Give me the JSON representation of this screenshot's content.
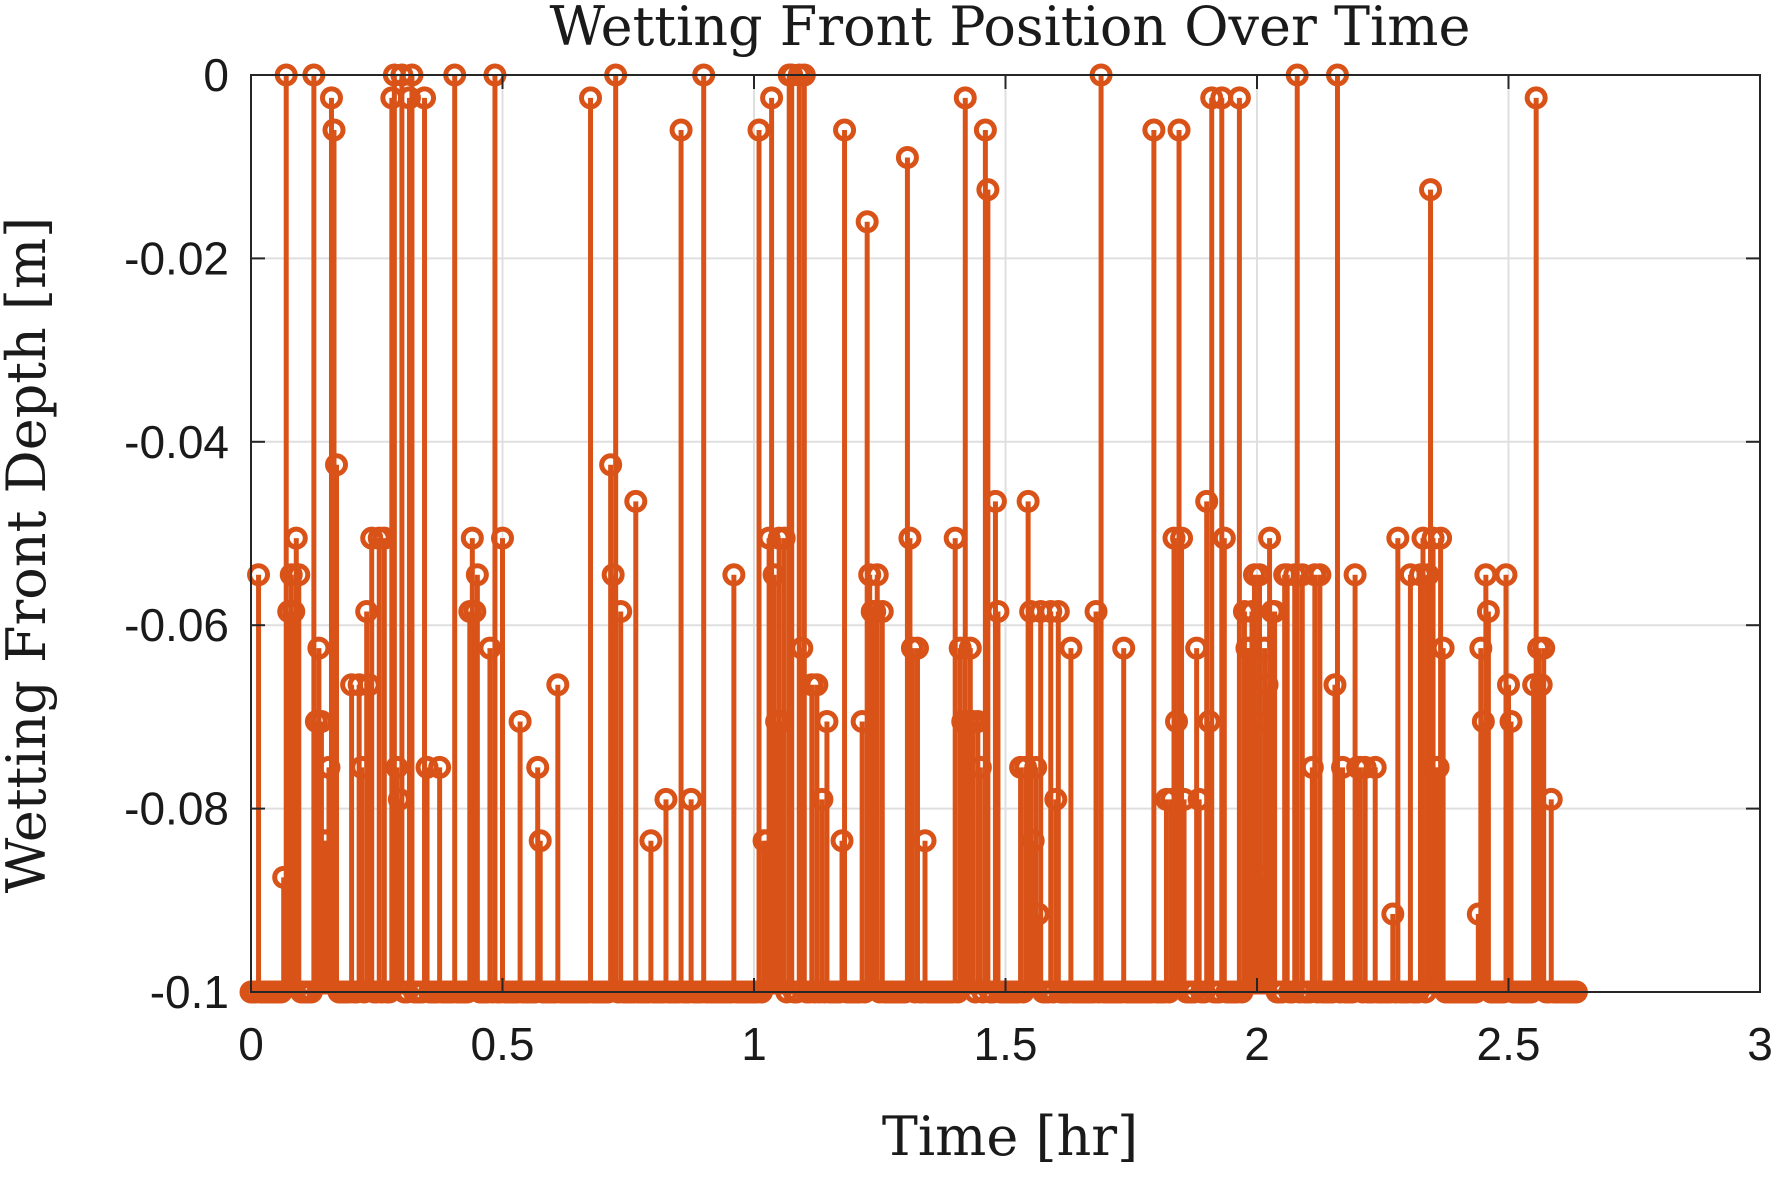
{
  "colors": {
    "series": "#D95319",
    "axis": "#262626",
    "grid": "#DFDFDF",
    "background": "#ffffff"
  },
  "chart_data": {
    "type": "stem",
    "title": "Wetting Front Position Over Time",
    "xlabel": "Time [hr]",
    "ylabel": "Wetting Front Depth [m]",
    "xlim": [
      0,
      3
    ],
    "ylim": [
      -0.1,
      0
    ],
    "xticks": [
      0,
      0.5,
      1,
      1.5,
      2,
      2.5,
      3
    ],
    "xtick_labels": [
      "0",
      "0.5",
      "1",
      "1.5",
      "2",
      "2.5",
      "3"
    ],
    "yticks": [
      -0.1,
      -0.08,
      -0.06,
      -0.04,
      -0.02,
      0
    ],
    "ytick_labels": [
      "-0.1",
      "-0.08",
      "-0.06",
      "-0.04",
      "-0.02",
      "0"
    ],
    "grid": true,
    "box": true,
    "baseline": -0.1,
    "marker": "circle",
    "sample_spacing_hr": 0.005,
    "x_end_hr": 2.635,
    "series": [
      {
        "points": [
          [
            0.015,
            -0.0545
          ],
          [
            0.065,
            -0.0875
          ],
          [
            0.07,
            0.0
          ],
          [
            0.075,
            -0.0585
          ],
          [
            0.08,
            -0.0545
          ],
          [
            0.085,
            -0.0585
          ],
          [
            0.09,
            -0.0505
          ],
          [
            0.095,
            -0.0545
          ],
          [
            0.125,
            0.0
          ],
          [
            0.13,
            -0.0705
          ],
          [
            0.135,
            -0.0625
          ],
          [
            0.14,
            -0.0705
          ],
          [
            0.145,
            -0.0835
          ],
          [
            0.15,
            -0.0835
          ],
          [
            0.155,
            -0.0755
          ],
          [
            0.16,
            -0.0025
          ],
          [
            0.165,
            -0.006
          ],
          [
            0.17,
            -0.0425
          ],
          [
            0.2,
            -0.0665
          ],
          [
            0.215,
            -0.0665
          ],
          [
            0.22,
            -0.0755
          ],
          [
            0.23,
            -0.0585
          ],
          [
            0.235,
            -0.0665
          ],
          [
            0.24,
            -0.0505
          ],
          [
            0.255,
            -0.0505
          ],
          [
            0.265,
            -0.0505
          ],
          [
            0.28,
            -0.0025
          ],
          [
            0.285,
            0.0
          ],
          [
            0.29,
            -0.0755
          ],
          [
            0.295,
            -0.079
          ],
          [
            0.3,
            0.0
          ],
          [
            0.315,
            -0.0025
          ],
          [
            0.32,
            0.0
          ],
          [
            0.345,
            -0.0025
          ],
          [
            0.35,
            -0.0755
          ],
          [
            0.375,
            -0.0755
          ],
          [
            0.405,
            0.0
          ],
          [
            0.435,
            -0.0585
          ],
          [
            0.44,
            -0.0505
          ],
          [
            0.445,
            -0.0585
          ],
          [
            0.45,
            -0.0545
          ],
          [
            0.475,
            -0.0625
          ],
          [
            0.485,
            0.0
          ],
          [
            0.5,
            -0.0505
          ],
          [
            0.535,
            -0.0705
          ],
          [
            0.57,
            -0.0755
          ],
          [
            0.575,
            -0.0835
          ],
          [
            0.61,
            -0.0665
          ],
          [
            0.675,
            -0.0025
          ],
          [
            0.715,
            -0.0425
          ],
          [
            0.72,
            -0.0545
          ],
          [
            0.725,
            0.0
          ],
          [
            0.735,
            -0.0585
          ],
          [
            0.765,
            -0.0465
          ],
          [
            0.795,
            -0.0835
          ],
          [
            0.825,
            -0.079
          ],
          [
            0.855,
            -0.006
          ],
          [
            0.875,
            -0.079
          ],
          [
            0.9,
            0.0
          ],
          [
            0.96,
            -0.0545
          ],
          [
            1.01,
            -0.006
          ],
          [
            1.02,
            -0.0835
          ],
          [
            1.025,
            -0.0835
          ],
          [
            1.03,
            -0.0505
          ],
          [
            1.035,
            -0.0025
          ],
          [
            1.04,
            -0.0545
          ],
          [
            1.045,
            -0.0705
          ],
          [
            1.05,
            -0.0505
          ],
          [
            1.055,
            -0.0705
          ],
          [
            1.06,
            -0.0505
          ],
          [
            1.07,
            0.0
          ],
          [
            1.075,
            0.0
          ],
          [
            1.09,
            0.0
          ],
          [
            1.095,
            -0.0625
          ],
          [
            1.1,
            0.0
          ],
          [
            1.115,
            -0.0665
          ],
          [
            1.125,
            -0.0665
          ],
          [
            1.135,
            -0.079
          ],
          [
            1.145,
            -0.0705
          ],
          [
            1.175,
            -0.0835
          ],
          [
            1.18,
            -0.006
          ],
          [
            1.215,
            -0.0705
          ],
          [
            1.225,
            -0.016
          ],
          [
            1.23,
            -0.0545
          ],
          [
            1.235,
            -0.0585
          ],
          [
            1.24,
            -0.0585
          ],
          [
            1.245,
            -0.0545
          ],
          [
            1.255,
            -0.0585
          ],
          [
            1.305,
            -0.009
          ],
          [
            1.31,
            -0.0505
          ],
          [
            1.315,
            -0.0625
          ],
          [
            1.325,
            -0.0625
          ],
          [
            1.34,
            -0.0835
          ],
          [
            1.4,
            -0.0505
          ],
          [
            1.41,
            -0.0625
          ],
          [
            1.415,
            -0.0705
          ],
          [
            1.42,
            -0.0025
          ],
          [
            1.425,
            -0.0705
          ],
          [
            1.43,
            -0.0625
          ],
          [
            1.435,
            -0.0705
          ],
          [
            1.445,
            -0.0705
          ],
          [
            1.45,
            -0.0755
          ],
          [
            1.46,
            -0.006
          ],
          [
            1.465,
            -0.0125
          ],
          [
            1.48,
            -0.0465
          ],
          [
            1.485,
            -0.0585
          ],
          [
            1.53,
            -0.0755
          ],
          [
            1.54,
            -0.0755
          ],
          [
            1.545,
            -0.0465
          ],
          [
            1.55,
            -0.0585
          ],
          [
            1.555,
            -0.0835
          ],
          [
            1.56,
            -0.0755
          ],
          [
            1.565,
            -0.0915
          ],
          [
            1.57,
            -0.0585
          ],
          [
            1.59,
            -0.0585
          ],
          [
            1.6,
            -0.079
          ],
          [
            1.605,
            -0.0585
          ],
          [
            1.63,
            -0.0625
          ],
          [
            1.68,
            -0.0585
          ],
          [
            1.69,
            0.0
          ],
          [
            1.735,
            -0.0625
          ],
          [
            1.795,
            -0.006
          ],
          [
            1.82,
            -0.079
          ],
          [
            1.83,
            -0.079
          ],
          [
            1.835,
            -0.0505
          ],
          [
            1.84,
            -0.0705
          ],
          [
            1.845,
            -0.006
          ],
          [
            1.85,
            -0.0505
          ],
          [
            1.855,
            -0.079
          ],
          [
            1.88,
            -0.0625
          ],
          [
            1.885,
            -0.079
          ],
          [
            1.9,
            -0.0465
          ],
          [
            1.905,
            -0.0705
          ],
          [
            1.91,
            -0.0025
          ],
          [
            1.93,
            -0.0025
          ],
          [
            1.935,
            -0.0505
          ],
          [
            1.965,
            -0.0025
          ],
          [
            1.975,
            -0.0585
          ],
          [
            1.98,
            -0.0625
          ],
          [
            1.985,
            -0.0625
          ],
          [
            1.99,
            -0.0585
          ],
          [
            1.995,
            -0.0545
          ],
          [
            2.0,
            -0.0705
          ],
          [
            2.005,
            -0.0545
          ],
          [
            2.01,
            -0.0875
          ],
          [
            2.015,
            -0.0625
          ],
          [
            2.02,
            -0.0665
          ],
          [
            2.025,
            -0.0505
          ],
          [
            2.03,
            -0.0585
          ],
          [
            2.035,
            -0.0585
          ],
          [
            2.055,
            -0.0545
          ],
          [
            2.06,
            -0.0545
          ],
          [
            2.075,
            -0.0545
          ],
          [
            2.08,
            0.0
          ],
          [
            2.09,
            -0.0545
          ],
          [
            2.11,
            -0.0755
          ],
          [
            2.115,
            -0.0545
          ],
          [
            2.125,
            -0.0545
          ],
          [
            2.155,
            -0.0665
          ],
          [
            2.16,
            0.0
          ],
          [
            2.17,
            -0.0755
          ],
          [
            2.195,
            -0.0545
          ],
          [
            2.2,
            -0.0755
          ],
          [
            2.205,
            -0.0755
          ],
          [
            2.215,
            -0.0755
          ],
          [
            2.235,
            -0.0755
          ],
          [
            2.27,
            -0.0915
          ],
          [
            2.28,
            -0.0505
          ],
          [
            2.305,
            -0.0545
          ],
          [
            2.325,
            -0.0545
          ],
          [
            2.33,
            -0.0505
          ],
          [
            2.34,
            -0.0545
          ],
          [
            2.345,
            -0.0125
          ],
          [
            2.35,
            -0.0505
          ],
          [
            2.355,
            -0.0755
          ],
          [
            2.36,
            -0.0755
          ],
          [
            2.365,
            -0.0505
          ],
          [
            2.37,
            -0.0625
          ],
          [
            2.44,
            -0.0915
          ],
          [
            2.445,
            -0.0625
          ],
          [
            2.45,
            -0.0705
          ],
          [
            2.455,
            -0.0545
          ],
          [
            2.46,
            -0.0585
          ],
          [
            2.495,
            -0.0545
          ],
          [
            2.5,
            -0.0665
          ],
          [
            2.505,
            -0.0705
          ],
          [
            2.55,
            -0.0665
          ],
          [
            2.555,
            -0.0025
          ],
          [
            2.56,
            -0.0625
          ],
          [
            2.565,
            -0.0665
          ],
          [
            2.57,
            -0.0625
          ],
          [
            2.585,
            -0.079
          ]
        ]
      }
    ]
  }
}
